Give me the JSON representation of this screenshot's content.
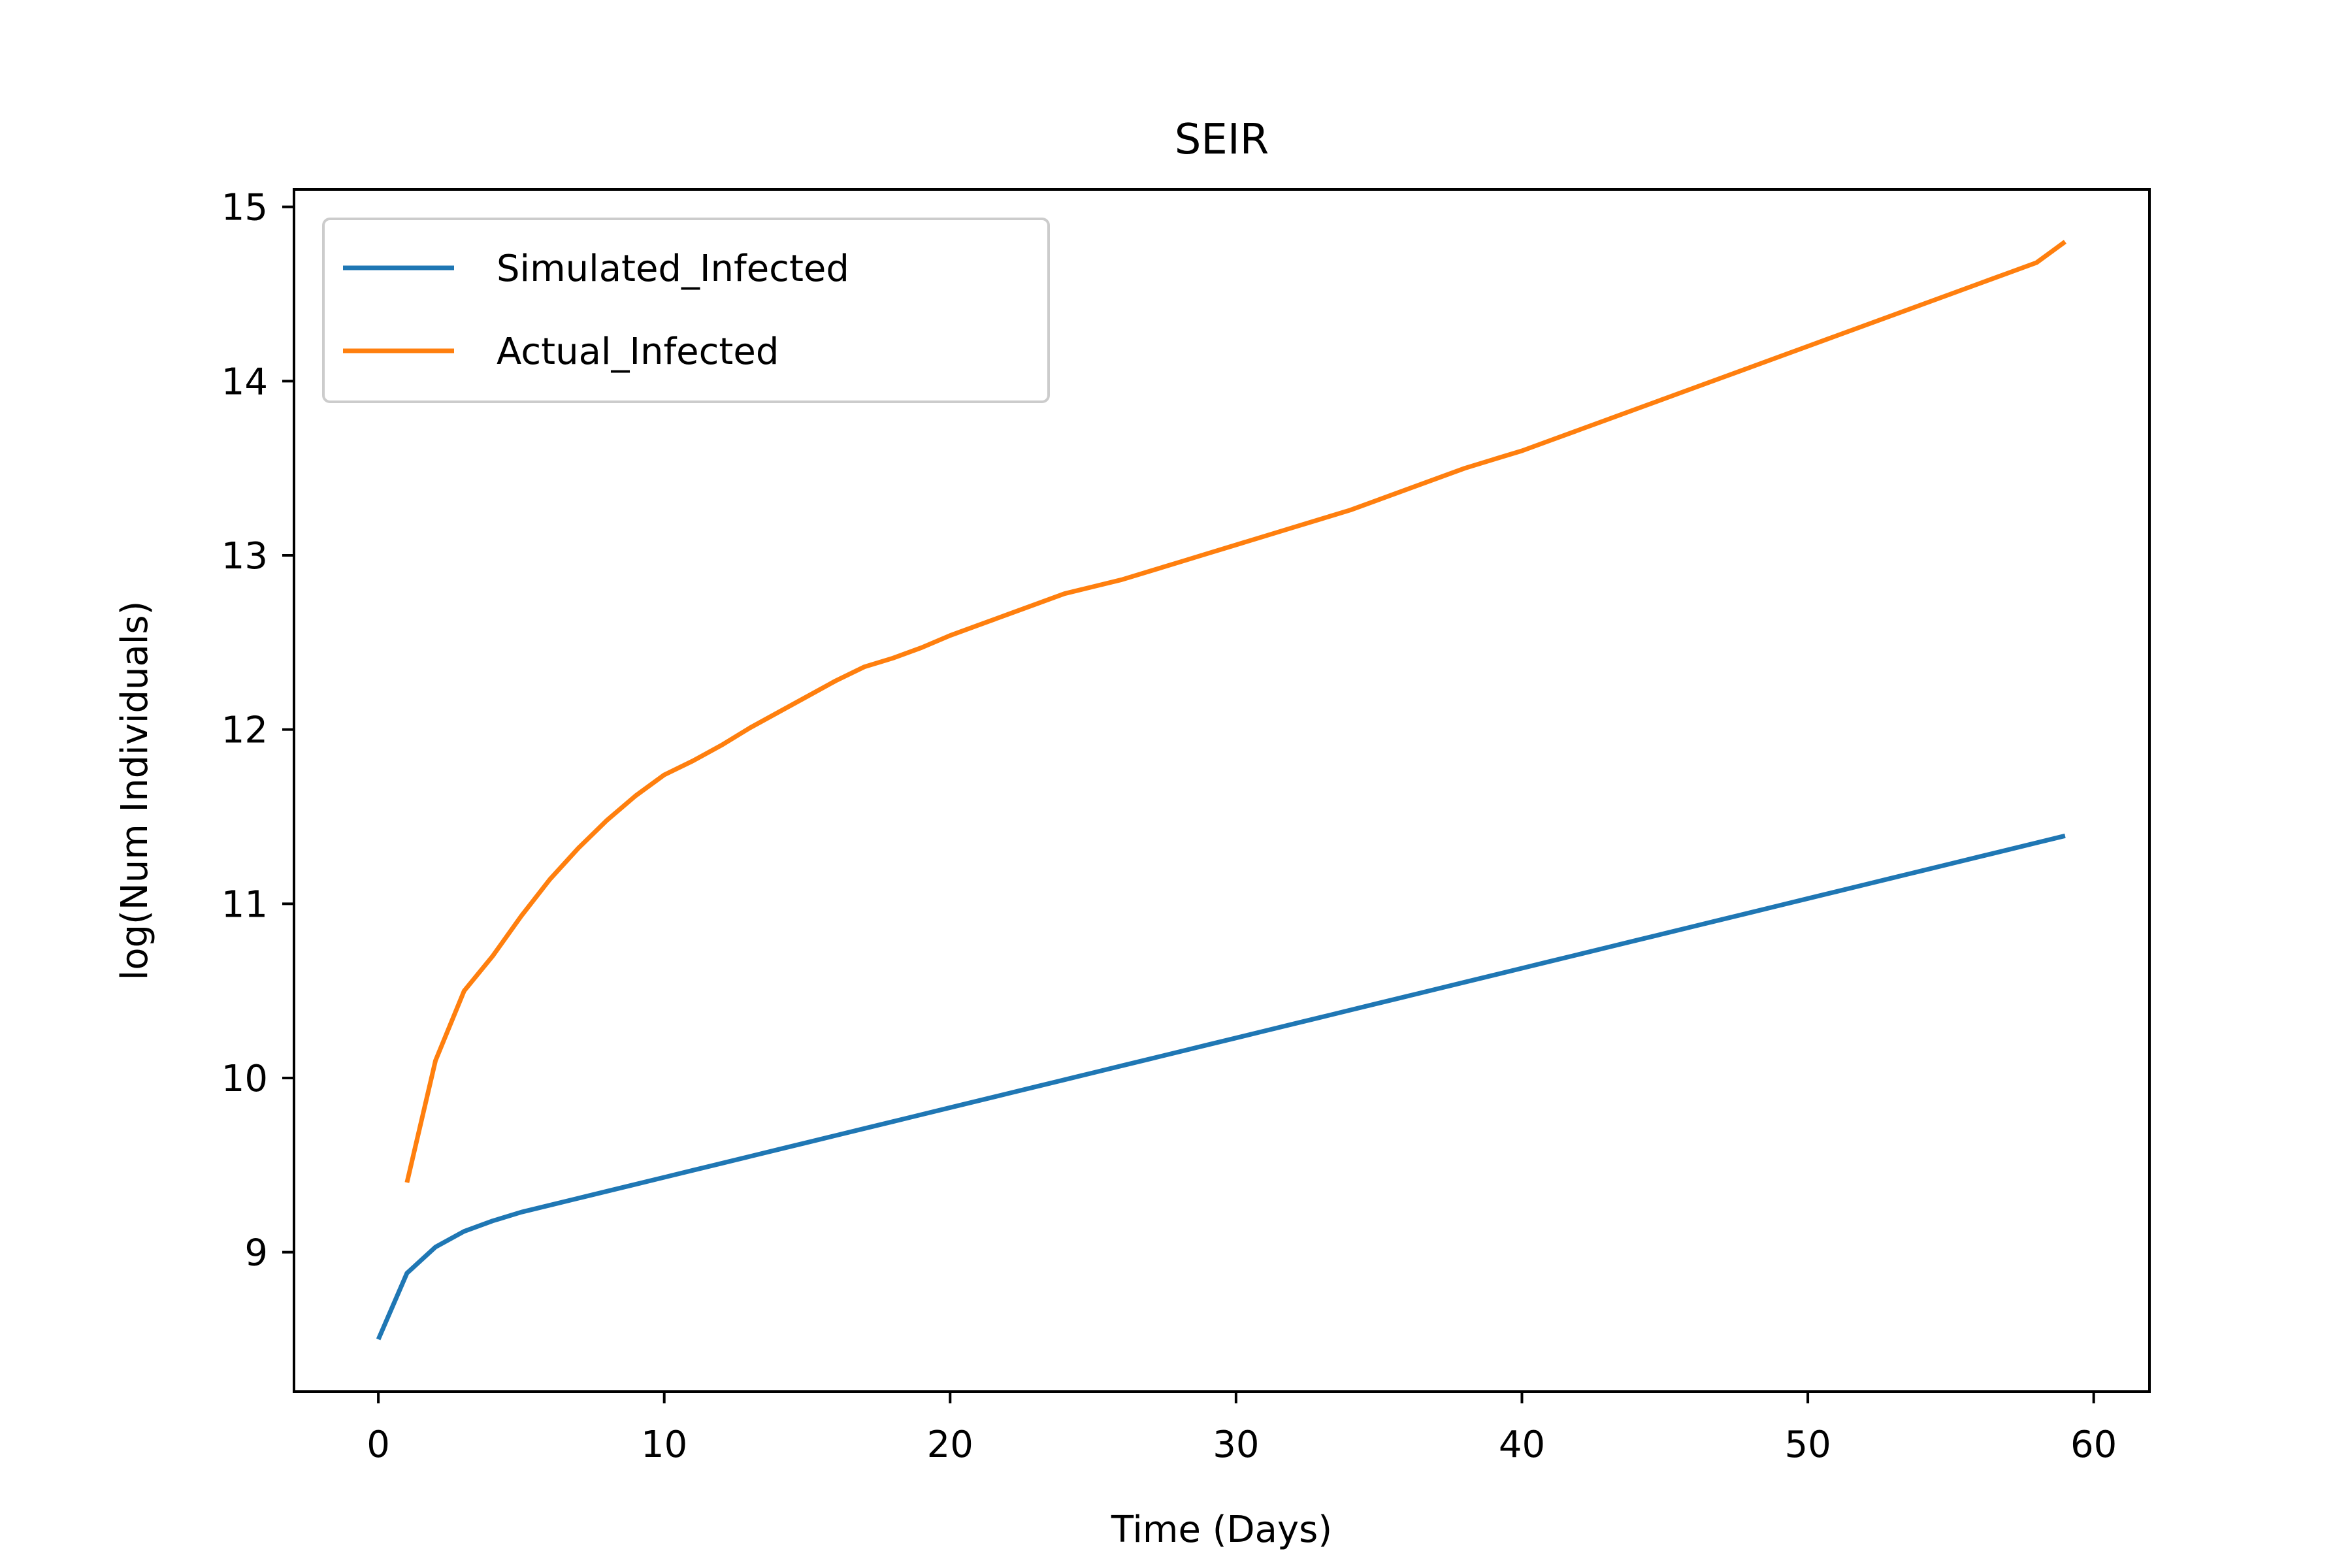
{
  "chart_data": {
    "type": "line",
    "title": "SEIR",
    "xlabel": "Time (Days)",
    "ylabel": "log(Num Individuals)",
    "xlim": [
      -2.95,
      61.95
    ],
    "ylim": [
      8.2,
      15.1
    ],
    "xticks": [
      0,
      10,
      20,
      30,
      40,
      50,
      60
    ],
    "yticks": [
      9,
      10,
      11,
      12,
      13,
      14,
      15
    ],
    "grid": false,
    "legend_position": "upper left",
    "series": [
      {
        "name": "Simulated_Infected",
        "color": "#1f77b4",
        "x": [
          0,
          1,
          2,
          3,
          4,
          5,
          6,
          7,
          8,
          9,
          10,
          11,
          12,
          13,
          14,
          15,
          16,
          17,
          18,
          19,
          20,
          21,
          22,
          23,
          24,
          25,
          26,
          27,
          28,
          29,
          30,
          31,
          32,
          33,
          34,
          35,
          36,
          37,
          38,
          39,
          40,
          41,
          42,
          43,
          44,
          45,
          46,
          47,
          48,
          49,
          50,
          51,
          52,
          53,
          54,
          55,
          56,
          57,
          58,
          59
        ],
        "y": [
          8.5,
          8.88,
          9.03,
          9.12,
          9.18,
          9.23,
          9.27,
          9.31,
          9.35,
          9.39,
          9.43,
          9.47,
          9.51,
          9.55,
          9.59,
          9.63,
          9.67,
          9.71,
          9.75,
          9.79,
          9.83,
          9.87,
          9.91,
          9.95,
          9.99,
          10.03,
          10.07,
          10.11,
          10.15,
          10.19,
          10.23,
          10.27,
          10.31,
          10.35,
          10.39,
          10.43,
          10.47,
          10.51,
          10.55,
          10.59,
          10.63,
          10.67,
          10.71,
          10.75,
          10.79,
          10.83,
          10.87,
          10.91,
          10.95,
          10.99,
          11.03,
          11.07,
          11.11,
          11.15,
          11.19,
          11.23,
          11.27,
          11.31,
          11.35,
          11.39
        ]
      },
      {
        "name": "Actual_Infected",
        "color": "#ff7f0e",
        "x": [
          1,
          2,
          3,
          4,
          5,
          6,
          7,
          8,
          9,
          10,
          11,
          12,
          13,
          14,
          15,
          16,
          17,
          18,
          19,
          20,
          21,
          22,
          23,
          24,
          25,
          26,
          27,
          28,
          29,
          30,
          31,
          32,
          33,
          34,
          35,
          36,
          37,
          38,
          39,
          40,
          41,
          42,
          43,
          44,
          45,
          46,
          47,
          48,
          49,
          50,
          51,
          52,
          53,
          54,
          55,
          56,
          57,
          58,
          59
        ],
        "y": [
          9.4,
          10.1,
          10.5,
          10.7,
          10.93,
          11.14,
          11.32,
          11.48,
          11.62,
          11.74,
          11.82,
          11.91,
          12.01,
          12.1,
          12.19,
          12.28,
          12.36,
          12.41,
          12.47,
          12.54,
          12.6,
          12.66,
          12.72,
          12.78,
          12.82,
          12.86,
          12.91,
          12.96,
          13.01,
          13.06,
          13.11,
          13.16,
          13.21,
          13.26,
          13.32,
          13.38,
          13.44,
          13.5,
          13.55,
          13.6,
          13.66,
          13.72,
          13.78,
          13.84,
          13.9,
          13.96,
          14.02,
          14.08,
          14.14,
          14.2,
          14.26,
          14.32,
          14.38,
          14.44,
          14.5,
          14.56,
          14.62,
          14.68,
          14.8
        ]
      }
    ]
  }
}
